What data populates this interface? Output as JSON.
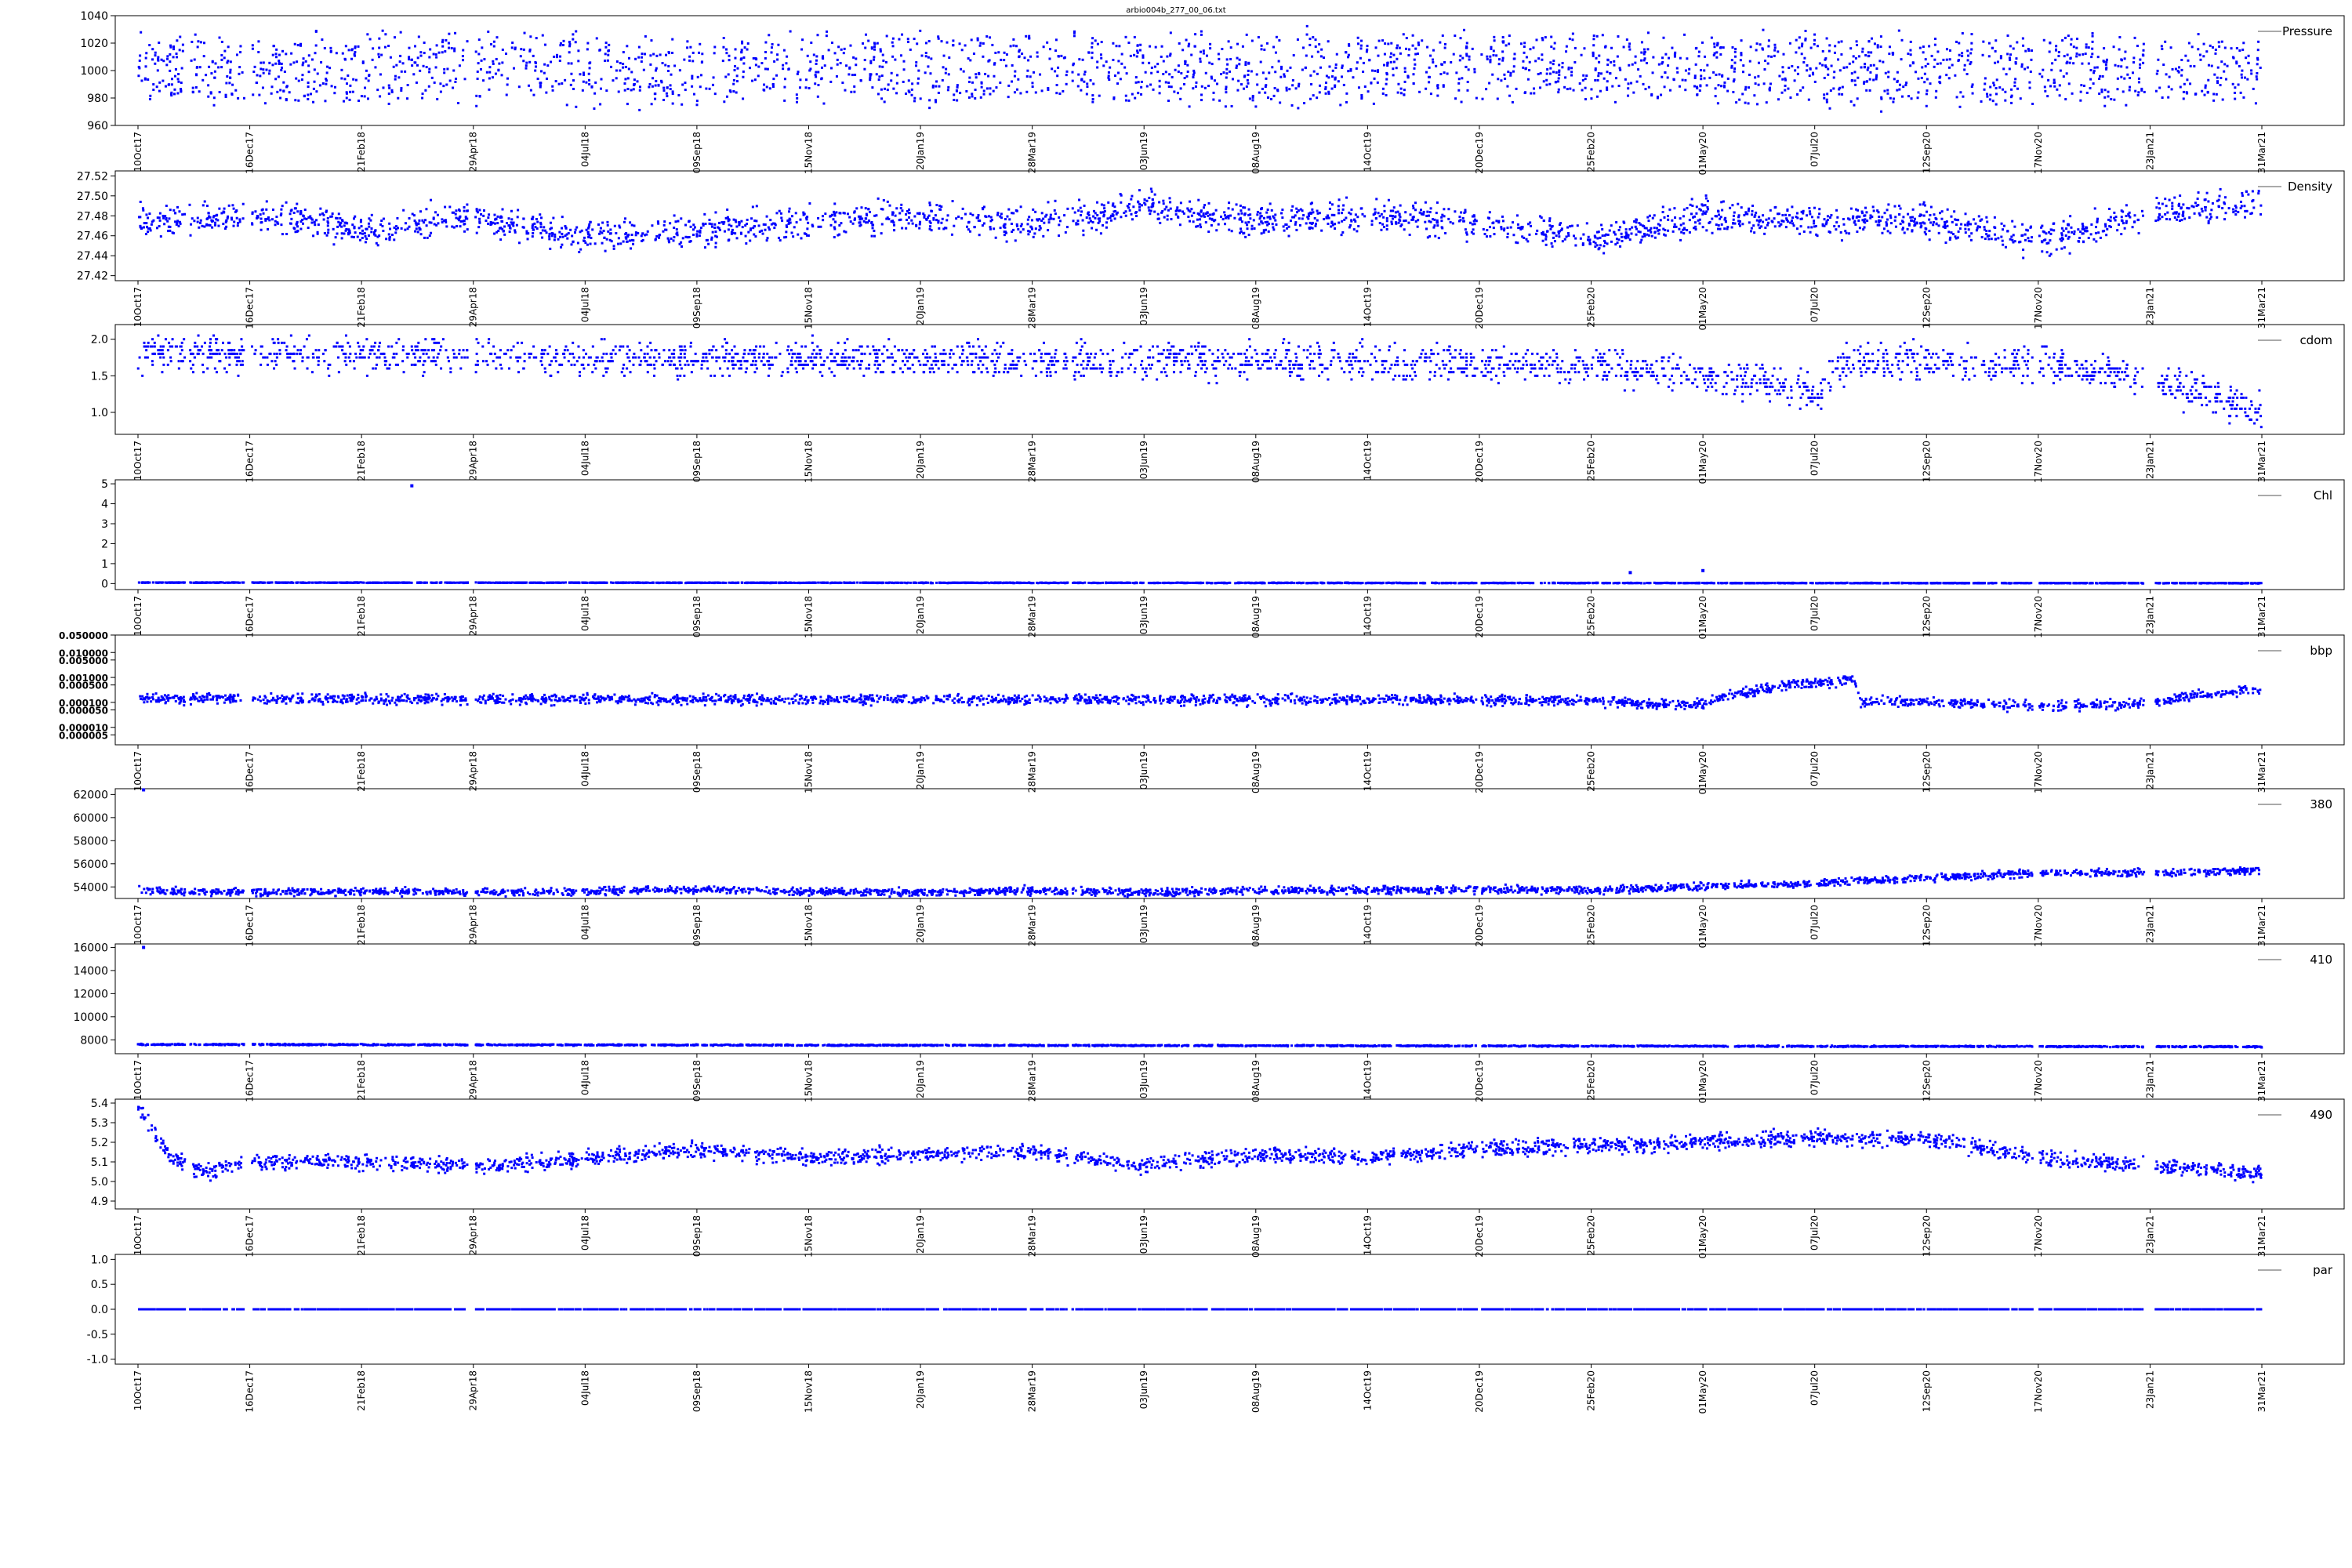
{
  "figure": {
    "title": "arbio004b_277_00_06.txt"
  },
  "chart_data": {
    "type": "scatter",
    "marker_color": "#0000ff",
    "legend_placement": "top-right",
    "x_axis": {
      "type": "date",
      "range": [
        "2017-10-10",
        "2021-03-31"
      ],
      "ticks": [
        "10Oct17",
        "16Dec17",
        "21Feb18",
        "29Apr18",
        "04Jul18",
        "09Sep18",
        "15Nov18",
        "20Jan19",
        "28Mar19",
        "03Jun19",
        "08Aug19",
        "14Oct19",
        "20Dec19",
        "25Feb20",
        "01May20",
        "07Jul20",
        "12Sep20",
        "17Nov20",
        "23Jan21",
        "31Mar21"
      ]
    },
    "panels": [
      {
        "name": "Pressure",
        "ylim": [
          960,
          1040
        ],
        "yticks": [
          "960",
          "980",
          "1000",
          "1020",
          "1040"
        ],
        "scale": "linear",
        "trend": [
          [
            0,
            1010
          ],
          [
            1,
            1005
          ],
          [
            2,
            1008
          ],
          [
            3,
            1010
          ],
          [
            4,
            1008
          ],
          [
            5,
            1007
          ],
          [
            6,
            1010
          ],
          [
            7,
            1009
          ],
          [
            8,
            1009
          ],
          [
            9,
            1010
          ],
          [
            10,
            1008
          ],
          [
            11,
            1009
          ],
          [
            12,
            1010
          ],
          [
            13,
            1010
          ],
          [
            14,
            1010
          ],
          [
            15,
            1008
          ],
          [
            16,
            1007
          ],
          [
            17,
            1008
          ],
          [
            18,
            1008
          ],
          [
            19,
            1010
          ]
        ],
        "spread": 18,
        "note": "sawtooth profiles 975-1030"
      },
      {
        "name": "Density",
        "ylim": [
          27.415,
          27.525
        ],
        "yticks": [
          "27.42",
          "27.44",
          "27.46",
          "27.48",
          "27.50",
          "27.52"
        ],
        "scale": "linear",
        "trend": [
          [
            0,
            27.475
          ],
          [
            1,
            27.48
          ],
          [
            2,
            27.465
          ],
          [
            3,
            27.478
          ],
          [
            4,
            27.46
          ],
          [
            5,
            27.465
          ],
          [
            6,
            27.475
          ],
          [
            7,
            27.48
          ],
          [
            8,
            27.47
          ],
          [
            9,
            27.49
          ],
          [
            10,
            27.475
          ],
          [
            11,
            27.48
          ],
          [
            12,
            27.475
          ],
          [
            13,
            27.455
          ],
          [
            14,
            27.48
          ],
          [
            15,
            27.475
          ],
          [
            16,
            27.475
          ],
          [
            17,
            27.455
          ],
          [
            18,
            27.48
          ],
          [
            19,
            27.495
          ]
        ],
        "spread": 0.012
      },
      {
        "name": "cdom",
        "ylim": [
          0.7,
          2.2
        ],
        "yticks": [
          "1.0",
          "1.5",
          "2.0"
        ],
        "scale": "linear",
        "trend": [
          [
            0,
            1.82
          ],
          [
            1,
            1.8
          ],
          [
            2,
            1.8
          ],
          [
            3,
            1.78
          ],
          [
            4,
            1.75
          ],
          [
            5,
            1.72
          ],
          [
            6,
            1.72
          ],
          [
            7,
            1.72
          ],
          [
            8,
            1.7
          ],
          [
            9,
            1.7
          ],
          [
            10,
            1.7
          ],
          [
            11,
            1.7
          ],
          [
            12,
            1.68
          ],
          [
            13,
            1.65
          ],
          [
            14,
            1.55
          ],
          [
            15,
            1.25
          ],
          [
            15.3,
            1.7
          ],
          [
            16,
            1.7
          ],
          [
            17,
            1.68
          ],
          [
            18,
            1.45
          ],
          [
            19,
            1.0
          ]
        ],
        "spread": 0.18,
        "quantized": 0.05
      },
      {
        "name": "Chl",
        "ylim": [
          -0.3,
          5.2
        ],
        "yticks": [
          "0",
          "1",
          "2",
          "3",
          "4",
          "5"
        ],
        "scale": "linear",
        "trend": [
          [
            0,
            0.05
          ],
          [
            19,
            0.02
          ]
        ],
        "spread": 0.01,
        "outliers": [
          [
            2.45,
            4.9
          ],
          [
            13.35,
            0.55
          ],
          [
            14.0,
            0.65
          ]
        ]
      },
      {
        "name": "bbp",
        "ylim": [
          2e-06,
          0.05
        ],
        "yticks": [
          "0.000005",
          "0.000010",
          "0.000050",
          "0.000100",
          "0.000500",
          "0.001000",
          "0.005000",
          "0.010000",
          "0.050000"
        ],
        "scale": "log",
        "trend": [
          [
            0,
            0.00014
          ],
          [
            13,
            0.00012
          ],
          [
            13.5,
            8e-05
          ],
          [
            14,
            9e-05
          ],
          [
            14.5,
            0.0003
          ],
          [
            15,
            0.0006
          ],
          [
            15.35,
            0.00075
          ],
          [
            15.4,
            0.00011
          ],
          [
            16,
            0.0001
          ],
          [
            17,
            7e-05
          ],
          [
            18,
            9e-05
          ],
          [
            19,
            0.00032
          ]
        ],
        "spread_decades": 0.15
      },
      {
        "name": "380",
        "ylim": [
          53000,
          62500
        ],
        "yticks": [
          "54000",
          "56000",
          "58000",
          "60000",
          "62000"
        ],
        "scale": "linear",
        "trend": [
          [
            0,
            53700
          ],
          [
            1,
            53500
          ],
          [
            2,
            53600
          ],
          [
            3,
            53500
          ],
          [
            4,
            53600
          ],
          [
            5,
            53800
          ],
          [
            6,
            53600
          ],
          [
            7,
            53500
          ],
          [
            8,
            53700
          ],
          [
            9,
            53500
          ],
          [
            10,
            53700
          ],
          [
            11,
            53700
          ],
          [
            12,
            53800
          ],
          [
            13,
            53700
          ],
          [
            14,
            54000
          ],
          [
            15,
            54300
          ],
          [
            16,
            54800
          ],
          [
            17,
            55200
          ],
          [
            18,
            55200
          ],
          [
            19,
            55400
          ]
        ],
        "spread": 250,
        "outliers": [
          [
            0.05,
            62400
          ]
        ]
      },
      {
        "name": "410",
        "ylim": [
          6800,
          16300
        ],
        "yticks": [
          "8000",
          "10000",
          "12000",
          "14000",
          "16000"
        ],
        "scale": "linear",
        "trend": [
          [
            0,
            7600
          ],
          [
            19,
            7400
          ]
        ],
        "spread": 40,
        "outliers": [
          [
            0.05,
            16000
          ]
        ]
      },
      {
        "name": "490",
        "ylim": [
          4.86,
          5.42
        ],
        "yticks": [
          "4.9",
          "5.0",
          "5.1",
          "5.2",
          "5.3",
          "5.4"
        ],
        "scale": "linear",
        "trend": [
          [
            0,
            5.38
          ],
          [
            0.3,
            5.12
          ],
          [
            0.6,
            5.05
          ],
          [
            1,
            5.1
          ],
          [
            2,
            5.1
          ],
          [
            3,
            5.08
          ],
          [
            4,
            5.12
          ],
          [
            5,
            5.16
          ],
          [
            6,
            5.12
          ],
          [
            7,
            5.14
          ],
          [
            8,
            5.15
          ],
          [
            9,
            5.08
          ],
          [
            10,
            5.14
          ],
          [
            11,
            5.12
          ],
          [
            12,
            5.17
          ],
          [
            13,
            5.18
          ],
          [
            14,
            5.2
          ],
          [
            15,
            5.22
          ],
          [
            16,
            5.22
          ],
          [
            17,
            5.12
          ],
          [
            18,
            5.08
          ],
          [
            19,
            5.04
          ]
        ],
        "spread": 0.03
      },
      {
        "name": "par",
        "ylim": [
          -1.1,
          1.1
        ],
        "yticks": [
          "-1.0",
          "-0.5",
          "0.0",
          "0.5",
          "1.0"
        ],
        "scale": "linear",
        "trend": [
          [
            0,
            0
          ],
          [
            19,
            0
          ]
        ],
        "spread": 0
      }
    ]
  }
}
